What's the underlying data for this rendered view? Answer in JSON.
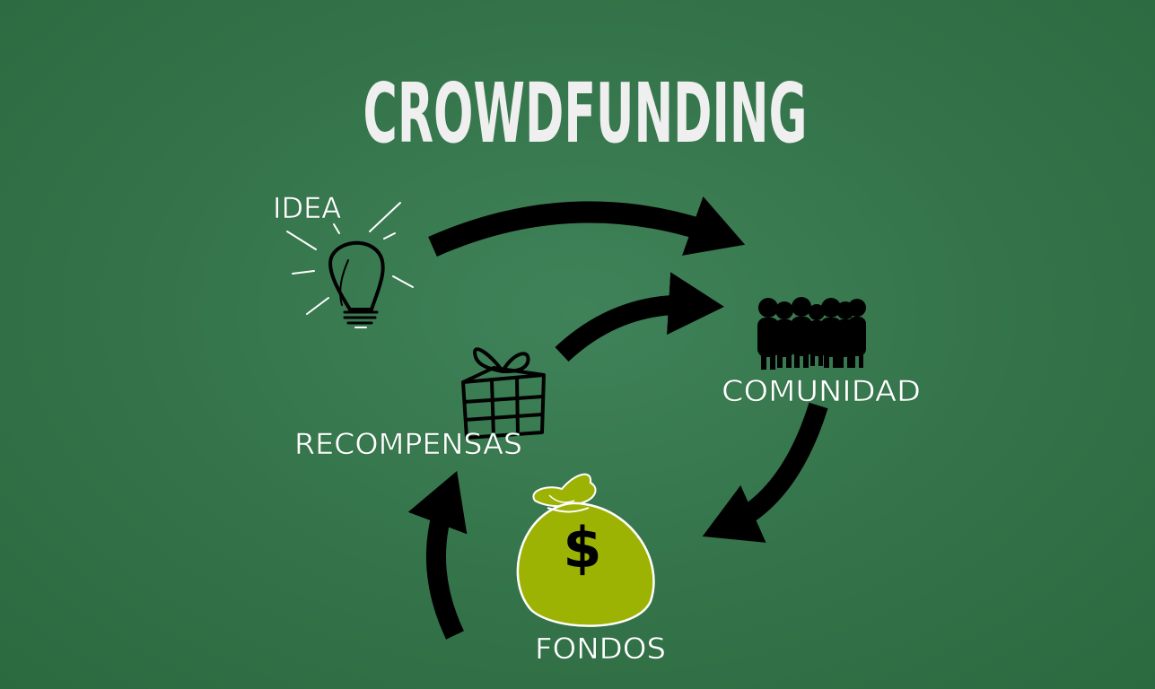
{
  "title": "CROWDFUNDING",
  "nodes": {
    "idea": "IDEA",
    "comunidad": "COMUNIDAD",
    "recompensas": "RECOMPENSAS",
    "fondos": "FONDOS",
    "dollar_symbol": "$"
  },
  "colors": {
    "background": "#347349",
    "money_bag": "#9db304",
    "text": "#ffffff",
    "arrows": "#000000"
  },
  "icons": {
    "idea": "lightbulb-icon",
    "comunidad": "people-icon",
    "recompensas": "gift-box-icon",
    "fondos": "money-bag-icon"
  }
}
